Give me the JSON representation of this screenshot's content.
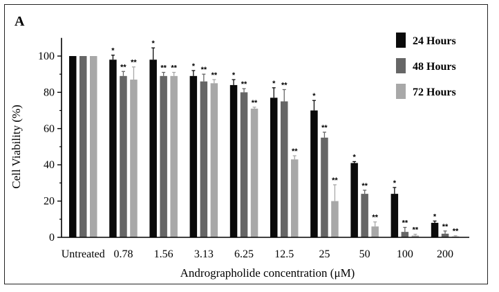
{
  "chart_data": {
    "type": "bar",
    "panel_label": "A",
    "title": "",
    "xlabel": "Andrographolide concentration (μM)",
    "ylabel": "Cell Viability (%)",
    "ylim": [
      0,
      110
    ],
    "yticks": [
      0,
      20,
      40,
      60,
      80,
      100
    ],
    "grid": false,
    "legend_position": "top-right",
    "categories": [
      "Untreated",
      "0.78",
      "1.56",
      "3.13",
      "6.25",
      "12.5",
      "25",
      "50",
      "100",
      "200"
    ],
    "series": [
      {
        "name": "24 Hours",
        "color": "#0a0a0a",
        "values": [
          100,
          98,
          98,
          89,
          84,
          77,
          70,
          41,
          24,
          8
        ],
        "errors": [
          0,
          2.5,
          6.5,
          3,
          3,
          5.5,
          5.5,
          0.8,
          3.5,
          1
        ],
        "significance": [
          "",
          "*",
          "*",
          "*",
          "*",
          "*",
          "*",
          "*",
          "*",
          "*"
        ]
      },
      {
        "name": "48 Hours",
        "color": "#666666",
        "values": [
          100,
          89,
          89,
          86,
          80,
          75,
          55,
          24,
          3,
          2
        ],
        "errors": [
          0,
          2.5,
          2,
          4,
          2,
          6.5,
          3,
          2,
          2.5,
          1.5
        ],
        "significance": [
          "",
          "**",
          "**",
          "**",
          "**",
          "**",
          "**",
          "**",
          "**",
          "**"
        ]
      },
      {
        "name": "72 Hours",
        "color": "#a8a8a8",
        "values": [
          100,
          87,
          89,
          85,
          71,
          43,
          20,
          6,
          1,
          0.5
        ],
        "errors": [
          0,
          7,
          2,
          2,
          0.8,
          2,
          9,
          2.5,
          0.7,
          0.4
        ],
        "significance": [
          "",
          "**",
          "**",
          "**",
          "**",
          "**",
          "**",
          "**",
          "**",
          "**"
        ]
      }
    ]
  }
}
